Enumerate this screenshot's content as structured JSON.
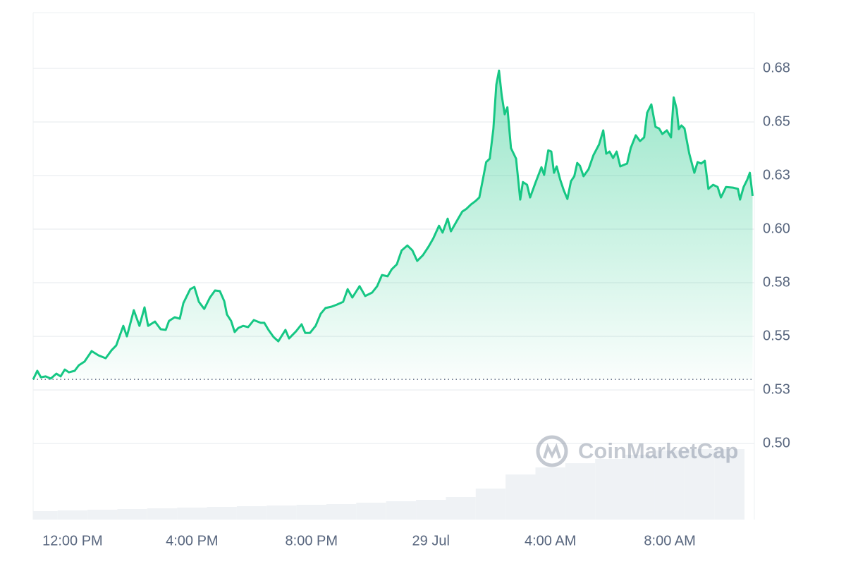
{
  "chart_data": {
    "type": "line",
    "watermark": "CoinMarketCap",
    "x": [
      10.68,
      10.82,
      10.94,
      11.1,
      11.27,
      11.46,
      11.6,
      11.74,
      11.88,
      12.07,
      12.21,
      12.4,
      12.64,
      12.87,
      13.11,
      13.3,
      13.46,
      13.7,
      13.82,
      14.05,
      14.24,
      14.41,
      14.53,
      14.76,
      14.95,
      15.12,
      15.23,
      15.42,
      15.59,
      15.71,
      15.94,
      16.08,
      16.23,
      16.41,
      16.6,
      16.77,
      16.93,
      17.08,
      17.17,
      17.31,
      17.43,
      17.55,
      17.71,
      17.88,
      18.07,
      18.3,
      18.42,
      18.56,
      18.73,
      18.89,
      19.13,
      19.25,
      19.48,
      19.67,
      19.79,
      19.95,
      20.14,
      20.31,
      20.47,
      20.66,
      20.85,
      21.06,
      21.21,
      21.37,
      21.61,
      21.8,
      22.03,
      22.2,
      22.36,
      22.55,
      22.69,
      22.86,
      23.02,
      23.21,
      23.38,
      23.54,
      23.73,
      23.92,
      24.08,
      24.27,
      24.39,
      24.56,
      24.67,
      24.91,
      25.05,
      25.19,
      25.34,
      25.5,
      25.62,
      25.76,
      25.85,
      25.97,
      26.09,
      26.19,
      26.28,
      26.37,
      26.47,
      26.56,
      26.68,
      26.85,
      26.99,
      27.08,
      27.22,
      27.32,
      27.51,
      27.7,
      27.79,
      27.93,
      28.03,
      28.12,
      28.21,
      28.33,
      28.45,
      28.57,
      28.69,
      28.8,
      28.9,
      28.99,
      29.11,
      29.28,
      29.44,
      29.63,
      29.77,
      29.87,
      29.98,
      30.1,
      30.22,
      30.34,
      30.57,
      30.69,
      30.86,
      31.0,
      31.14,
      31.24,
      31.38,
      31.52,
      31.64,
      31.75,
      31.9,
      32.04,
      32.13,
      32.23,
      32.3,
      32.39,
      32.49,
      32.65,
      32.82,
      32.93,
      33.05,
      33.17,
      33.29,
      33.45,
      33.6,
      33.71,
      33.88,
      34.11,
      34.28,
      34.35,
      34.47,
      34.59,
      34.68,
      34.77
    ],
    "series": [
      {
        "color": "#16c784",
        "values": [
          0.5299,
          0.5339,
          0.5309,
          0.5313,
          0.5303,
          0.5326,
          0.5313,
          0.5345,
          0.5332,
          0.5339,
          0.5365,
          0.5382,
          0.5431,
          0.5411,
          0.5398,
          0.5434,
          0.5457,
          0.5549,
          0.55,
          0.5622,
          0.5549,
          0.5635,
          0.5549,
          0.5569,
          0.5533,
          0.553,
          0.5572,
          0.5589,
          0.5582,
          0.5655,
          0.572,
          0.573,
          0.5661,
          0.5628,
          0.5681,
          0.5714,
          0.5711,
          0.5664,
          0.5602,
          0.5572,
          0.552,
          0.5539,
          0.5549,
          0.5543,
          0.5576,
          0.5563,
          0.5563,
          0.553,
          0.5497,
          0.5477,
          0.553,
          0.549,
          0.5523,
          0.5556,
          0.5516,
          0.5516,
          0.5549,
          0.5605,
          0.5632,
          0.5638,
          0.5648,
          0.5661,
          0.572,
          0.5681,
          0.5734,
          0.5688,
          0.5704,
          0.5734,
          0.5786,
          0.578,
          0.5813,
          0.5836,
          0.5901,
          0.5924,
          0.5901,
          0.5852,
          0.5878,
          0.5918,
          0.5957,
          0.6016,
          0.5984,
          0.6049,
          0.599,
          0.6049,
          0.6082,
          0.6095,
          0.6115,
          0.6132,
          0.6148,
          0.6247,
          0.6313,
          0.6329,
          0.6467,
          0.6674,
          0.674,
          0.6625,
          0.6536,
          0.6569,
          0.6378,
          0.6329,
          0.6138,
          0.622,
          0.6207,
          0.6148,
          0.622,
          0.6289,
          0.6253,
          0.6368,
          0.6362,
          0.6263,
          0.6293,
          0.623,
          0.6181,
          0.6141,
          0.6224,
          0.6247,
          0.6309,
          0.6296,
          0.6247,
          0.628,
          0.6345,
          0.6395,
          0.6461,
          0.6352,
          0.6362,
          0.6332,
          0.6362,
          0.6293,
          0.6306,
          0.6378,
          0.6438,
          0.6411,
          0.6428,
          0.6543,
          0.6582,
          0.6477,
          0.647,
          0.6444,
          0.6461,
          0.6428,
          0.6615,
          0.6559,
          0.6467,
          0.6484,
          0.647,
          0.6352,
          0.6263,
          0.6313,
          0.6306,
          0.6319,
          0.6188,
          0.6207,
          0.6197,
          0.6148,
          0.6197,
          0.6194,
          0.6188,
          0.6138,
          0.6197,
          0.623,
          0.6263,
          0.6155
        ]
      }
    ],
    "baseline": 0.5299,
    "volume": {
      "color": "#eff2f5",
      "x": [
        11,
        12,
        13,
        14,
        15,
        16,
        17,
        18,
        19,
        20,
        21,
        22,
        23,
        24,
        25,
        26,
        27,
        28,
        29,
        30,
        31,
        32,
        33,
        34
      ],
      "values": [
        12,
        13,
        14,
        15,
        16,
        17,
        18,
        19,
        20,
        21,
        22,
        24,
        26,
        28,
        32,
        44,
        64,
        74,
        80,
        86,
        92,
        98,
        100,
        100
      ],
      "ylim": [
        0,
        100
      ]
    },
    "xlim": [
      10.68,
      34.83
    ],
    "ylim": [
      0.4645,
      0.701
    ],
    "xticks": [
      {
        "value": 12,
        "label": "12:00 PM"
      },
      {
        "value": 16,
        "label": "4:00 PM"
      },
      {
        "value": 20,
        "label": "8:00 PM"
      },
      {
        "value": 24,
        "label": "29 Jul"
      },
      {
        "value": 28,
        "label": "4:00 AM"
      },
      {
        "value": 32,
        "label": "8:00 AM"
      }
    ],
    "yticks": [
      {
        "value": 0.5,
        "label": "0.50"
      },
      {
        "value": 0.525,
        "label": "0.53"
      },
      {
        "value": 0.55,
        "label": "0.55"
      },
      {
        "value": 0.575,
        "label": "0.58"
      },
      {
        "value": 0.6,
        "label": "0.60"
      },
      {
        "value": 0.625,
        "label": "0.63"
      },
      {
        "value": 0.65,
        "label": "0.65"
      },
      {
        "value": 0.675,
        "label": "0.68"
      }
    ],
    "grid": true
  }
}
